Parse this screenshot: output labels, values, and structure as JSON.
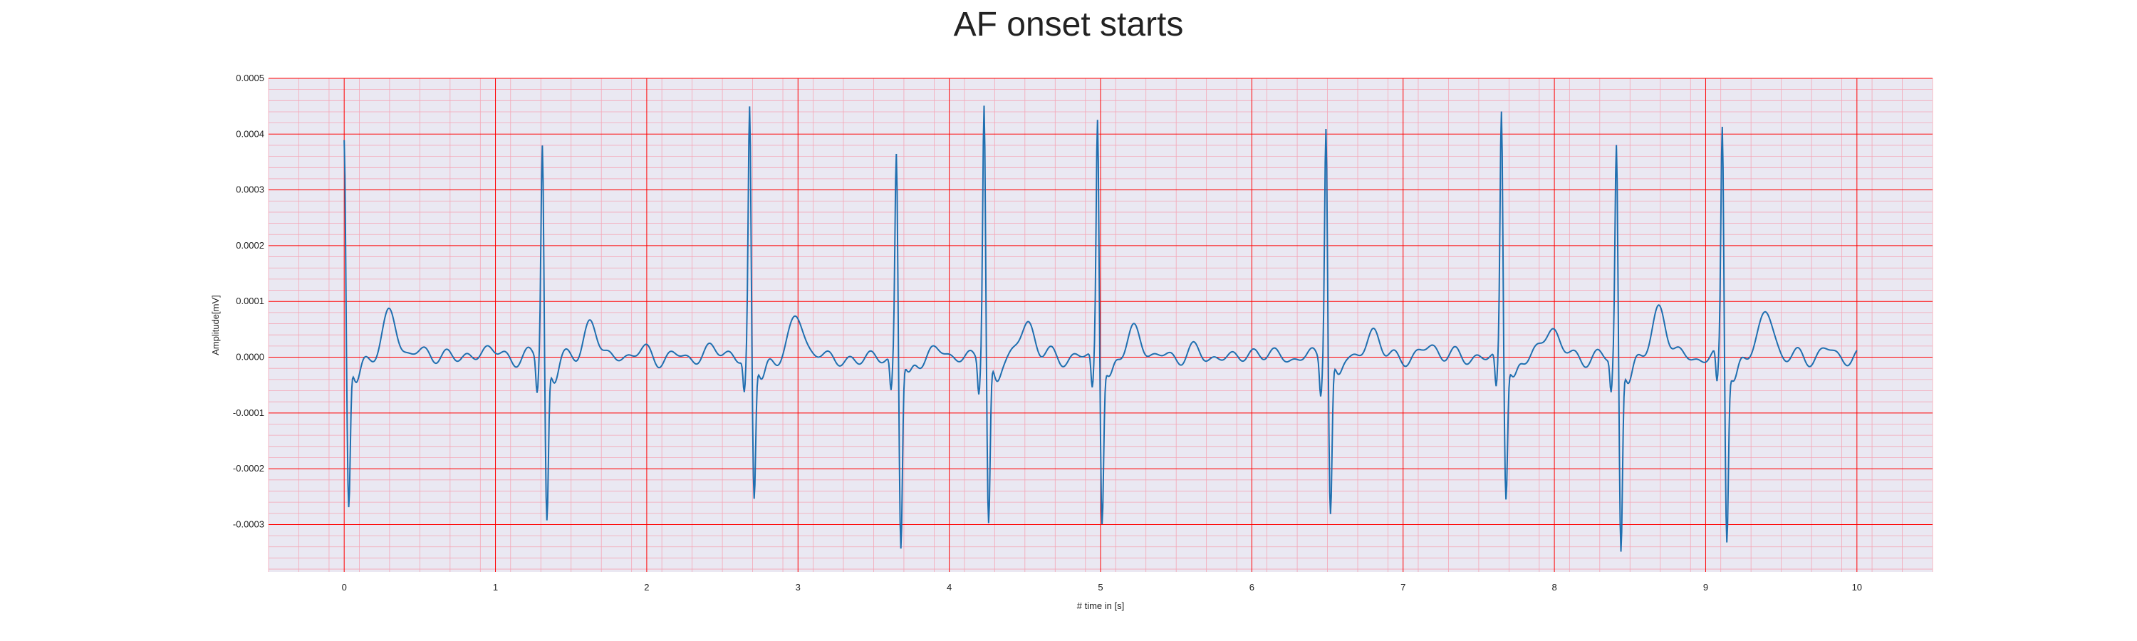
{
  "chart_data": {
    "type": "line",
    "title": "AF onset starts",
    "xlabel": "# time in [s]",
    "ylabel": "Amplitude[mV]",
    "xlim": [
      -0.5,
      10.5
    ],
    "ylim": [
      -0.000385,
      0.0005
    ],
    "x_ticks": [
      0,
      1,
      2,
      3,
      4,
      5,
      6,
      7,
      8,
      9,
      10
    ],
    "y_ticks": [
      -0.0003,
      -0.0002,
      -0.0001,
      0.0,
      0.0001,
      0.0002,
      0.0003,
      0.0004,
      0.0005
    ],
    "y_tick_labels": [
      "-0.0003",
      "-0.0002",
      "-0.0001",
      "0.0000",
      "0.0001",
      "0.0002",
      "0.0003",
      "0.0004",
      "0.0005"
    ],
    "grid": true,
    "minor_grid": true,
    "background_color": "#eae8f2",
    "grid_color": "#ff0000",
    "minor_grid_color": "#f4a6b6",
    "line_color": "#1f6fb0",
    "series": [
      {
        "sampling_rate_hz": 100,
        "r_peaks": [
          {
            "t": 0.0,
            "r": 0.000385,
            "s": -0.00027
          },
          {
            "t": 1.31,
            "r": 0.00039,
            "s": -0.000285
          },
          {
            "t": 2.68,
            "r": 0.000445,
            "s": -0.000255
          },
          {
            "t": 3.65,
            "r": 0.00037,
            "s": -0.00034
          },
          {
            "t": 4.23,
            "r": 0.00046,
            "s": -0.0003
          },
          {
            "t": 4.98,
            "r": 0.000435,
            "s": -0.000285
          },
          {
            "t": 6.49,
            "r": 0.00043,
            "s": -0.000275
          },
          {
            "t": 7.65,
            "r": 0.000445,
            "s": -0.000245
          },
          {
            "t": 8.41,
            "r": 0.00038,
            "s": -0.000345
          },
          {
            "t": 9.11,
            "r": 0.000415,
            "s": -0.000315
          }
        ],
        "t_waves": [
          {
            "t": 0.31,
            "a": 8e-05
          },
          {
            "t": 1.63,
            "a": 6e-05
          },
          {
            "t": 3.0,
            "a": 7.5e-05
          },
          {
            "t": 4.52,
            "a": 6.5e-05
          },
          {
            "t": 5.23,
            "a": 5e-05
          },
          {
            "t": 6.8,
            "a": 4.5e-05
          },
          {
            "t": 7.98,
            "a": 6e-05
          },
          {
            "t": 8.7,
            "a": 9e-05
          },
          {
            "t": 9.4,
            "a": 8.5e-05
          }
        ],
        "baseline_wander": [
          {
            "t": 0.55,
            "a": 1e-05
          },
          {
            "t": 0.95,
            "a": 1.5e-05
          },
          {
            "t": 1.95,
            "a": 1e-05
          },
          {
            "t": 2.45,
            "a": 1.5e-05
          },
          {
            "t": 3.35,
            "a": -8e-06
          },
          {
            "t": 3.95,
            "a": 1e-05
          },
          {
            "t": 5.6,
            "a": 1e-05
          },
          {
            "t": 6.05,
            "a": 1e-05
          },
          {
            "t": 7.2,
            "a": 2e-05
          },
          {
            "t": 9.8,
            "a": 1e-05
          }
        ]
      }
    ]
  }
}
